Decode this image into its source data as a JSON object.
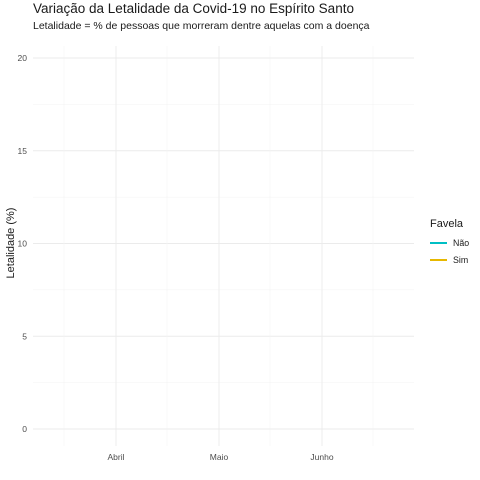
{
  "chart_data": {
    "type": "line",
    "title": "Variação da Letalidade da Covid-19 no Espírito Santo",
    "subtitle": "Letalidade = % de pessoas que morreram dentre aquelas com a doença",
    "xlabel": "",
    "ylabel": "Letalidade (%)",
    "x_ticks": [
      "Abril",
      "Maio",
      "Junho"
    ],
    "y_ticks": [
      0,
      5,
      10,
      15,
      20
    ],
    "ylim": [
      0,
      20
    ],
    "grid": true,
    "legend": {
      "title": "Favela",
      "position": "right",
      "items": [
        {
          "label": "Não",
          "color": "#00BFC4"
        },
        {
          "label": "Sim",
          "color": "#E7B800"
        }
      ]
    },
    "series": [
      {
        "name": "Não",
        "color": "#00BFC4",
        "values": []
      },
      {
        "name": "Sim",
        "color": "#E7B800",
        "values": []
      }
    ]
  }
}
